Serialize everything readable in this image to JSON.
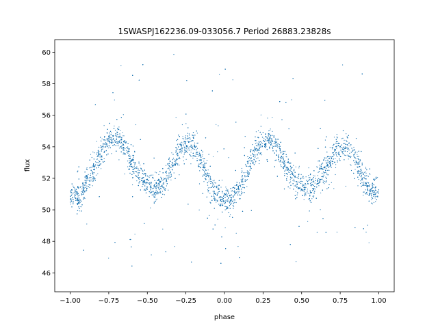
{
  "chart_data": {
    "type": "scatter",
    "title": "1SWASPJ162236.09-033056.7 Period 26883.23828s",
    "xlabel": "phase",
    "ylabel": "flux",
    "xlim": [
      -1.1,
      1.1
    ],
    "ylim": [
      44.8,
      60.8
    ],
    "xticks": [
      -1.0,
      -0.75,
      -0.5,
      -0.25,
      0.0,
      0.25,
      0.5,
      0.75,
      1.0
    ],
    "xtick_labels": [
      "−1.00",
      "−0.75",
      "−0.50",
      "−0.25",
      "0.00",
      "0.25",
      "0.50",
      "0.75",
      "1.00"
    ],
    "yticks": [
      46,
      48,
      50,
      52,
      54,
      56,
      58,
      60
    ],
    "ytick_labels": [
      "46",
      "48",
      "50",
      "52",
      "54",
      "56",
      "58",
      "60"
    ],
    "grid": false,
    "point_color": "#1f77b4",
    "series": [
      {
        "x": [
          -1.0,
          -0.95,
          -0.9,
          -0.85,
          -0.8,
          -0.75,
          -0.7,
          -0.65,
          -0.6,
          -0.55,
          -0.5,
          -0.45,
          -0.4,
          -0.35,
          -0.3,
          -0.25,
          -0.2,
          -0.15,
          -0.1,
          -0.05,
          0.0,
          0.05,
          0.1,
          0.15,
          0.2,
          0.25,
          0.3,
          0.35,
          0.4,
          0.45,
          0.5,
          0.55,
          0.6,
          0.65,
          0.7,
          0.75,
          0.8,
          0.85,
          0.9,
          0.95,
          1.0
        ],
        "y": [
          51.0,
          50.7,
          51.6,
          52.6,
          53.6,
          54.4,
          54.6,
          54.0,
          52.9,
          52.1,
          51.6,
          51.3,
          51.7,
          52.6,
          53.6,
          54.2,
          54.0,
          53.0,
          51.9,
          51.0,
          50.7,
          50.6,
          51.4,
          52.6,
          53.7,
          54.4,
          54.5,
          53.8,
          52.7,
          51.9,
          51.6,
          51.4,
          51.8,
          52.6,
          53.5,
          54.0,
          54.0,
          53.2,
          52.0,
          51.2,
          51.0
        ]
      }
    ]
  }
}
